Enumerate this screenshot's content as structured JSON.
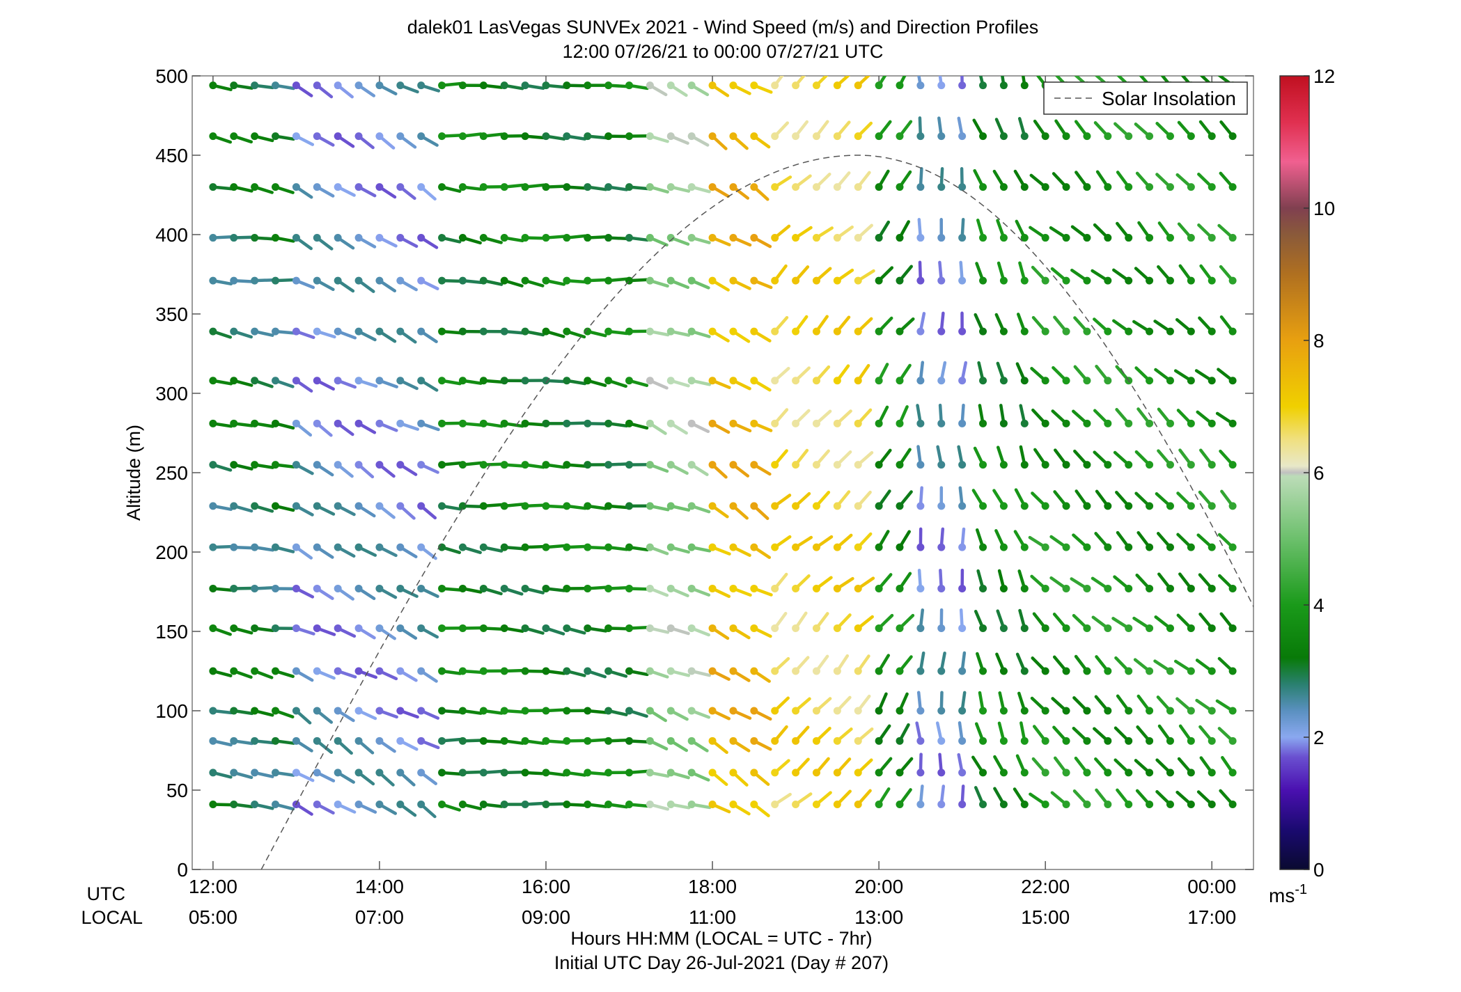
{
  "chart_data": {
    "type": "wind-barb-profile",
    "title": "dalek01 LasVegas SUNVEx 2021 - Wind Speed (m/s) and Direction Profiles",
    "subtitle": "12:00 07/26/21 to 00:00 07/27/21  UTC",
    "ylabel": "Altitude (m)",
    "ylim": [
      0,
      500
    ],
    "yticks": [
      "0",
      "50",
      "100",
      "150",
      "200",
      "250",
      "300",
      "350",
      "400",
      "450",
      "500"
    ],
    "xrange_hours_utc": [
      11.75,
      24.5
    ],
    "xtick_hours": [
      12,
      14,
      16,
      18,
      20,
      22,
      24
    ],
    "xticks_utc": [
      "12:00",
      "14:00",
      "16:00",
      "18:00",
      "20:00",
      "22:00",
      "00:00"
    ],
    "xticks_local": [
      "05:00",
      "07:00",
      "09:00",
      "11:00",
      "13:00",
      "15:00",
      "17:00"
    ],
    "xrow_utc": "UTC",
    "xrow_local": "LOCAL",
    "xlabel": "Hours HH:MM  (LOCAL = UTC - 7hr)",
    "xlabel2": "Initial UTC Day 26-Jul-2021 (Day # 207)",
    "legend": {
      "label": "Solar Insolation",
      "position": "top-right"
    },
    "colorbar": {
      "range": [
        0,
        12
      ],
      "ticks": [
        "0",
        "2",
        "4",
        "6",
        "8",
        "10",
        "12"
      ],
      "unit_base": "ms",
      "unit_exp": "-1",
      "stops": [
        [
          0.0,
          "#0a0a30"
        ],
        [
          0.6,
          "#1a0a70"
        ],
        [
          1.2,
          "#4a10b0"
        ],
        [
          1.7,
          "#6a50d0"
        ],
        [
          2.0,
          "#8aa8f0"
        ],
        [
          2.4,
          "#5a90c0"
        ],
        [
          2.8,
          "#2a8070"
        ],
        [
          3.2,
          "#087a08"
        ],
        [
          4.0,
          "#1a9a1a"
        ],
        [
          5.0,
          "#6cc06c"
        ],
        [
          5.95,
          "#bcdcb8"
        ],
        [
          6.0,
          "#c0c0c0"
        ],
        [
          6.1,
          "#e8e8c8"
        ],
        [
          6.5,
          "#f0e080"
        ],
        [
          7.0,
          "#f0d000"
        ],
        [
          8.0,
          "#e8a010"
        ],
        [
          9.0,
          "#b07020"
        ],
        [
          9.6,
          "#8a5a3a"
        ],
        [
          10.0,
          "#804050"
        ],
        [
          10.7,
          "#f06090"
        ],
        [
          11.3,
          "#e03050"
        ],
        [
          12.0,
          "#c01020"
        ]
      ]
    },
    "solar_insolation": {
      "start_hour": 12.58,
      "peak_hour": 19.75,
      "end_hour": 26.0,
      "peak_altitude": 450
    },
    "altitudes_m": [
      41,
      61,
      81,
      100,
      125,
      152,
      177,
      203,
      229,
      255,
      281,
      308,
      339,
      371,
      398,
      430,
      462,
      494
    ],
    "time_step_hours": 0.25,
    "wind_segments": [
      {
        "t_from": 12.0,
        "t_to": 13.0,
        "dir_deg": 280,
        "speed": 3.0
      },
      {
        "t_from": 13.0,
        "t_to": 14.75,
        "dir_deg": 300,
        "speed": 2.2
      },
      {
        "t_from": 14.75,
        "t_to": 17.25,
        "dir_deg": 275,
        "speed": 3.4
      },
      {
        "t_from": 17.25,
        "t_to": 17.9,
        "dir_deg": 290,
        "speed": 5.5
      },
      {
        "t_from": 17.9,
        "t_to": 18.75,
        "dir_deg": 300,
        "speed": 7.5
      },
      {
        "t_from": 18.75,
        "t_to": 20.0,
        "dir_deg": 225,
        "speed": 6.8
      },
      {
        "t_from": 20.0,
        "t_to": 20.5,
        "dir_deg": 215,
        "speed": 3.6
      },
      {
        "t_from": 20.5,
        "t_to": 21.25,
        "dir_deg": 180,
        "speed": 2.2
      },
      {
        "t_from": 21.25,
        "t_to": 22.0,
        "dir_deg": 160,
        "speed": 3.5
      },
      {
        "t_from": 22.0,
        "t_to": 24.25,
        "dir_deg": 135,
        "speed": 3.8
      }
    ]
  }
}
